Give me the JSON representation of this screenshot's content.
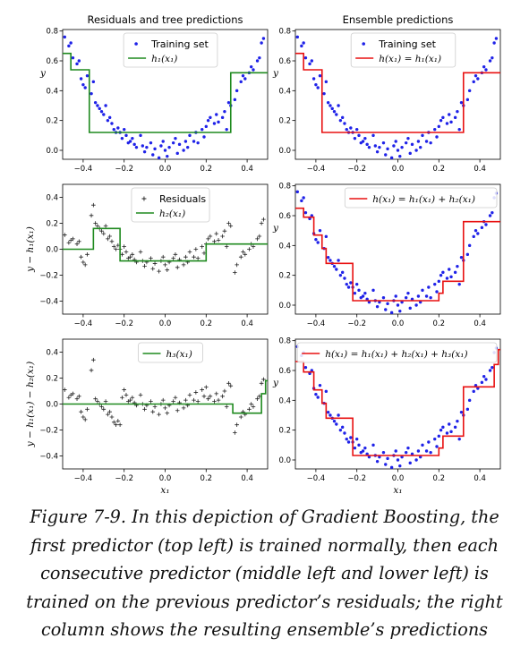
{
  "figure": {
    "colors": {
      "points": "#1f22e8",
      "residuals": "#222222",
      "green": "#1f8a1f",
      "red": "#e81010"
    }
  },
  "chart_data": [
    {
      "id": "p11",
      "type": "scatter",
      "title": "Residuals and tree predictions",
      "xlabel": "",
      "ylabel": "y",
      "xlim": [
        -0.5,
        0.5
      ],
      "ylim": [
        -0.06,
        0.81
      ],
      "xticks": [
        -0.4,
        -0.2,
        0.0,
        0.2,
        0.4
      ],
      "yticks": [
        0.0,
        0.2,
        0.4,
        0.6,
        0.8
      ],
      "points_kind": "dots",
      "line_color": "green",
      "legend": {
        "position": "top-center",
        "entries": [
          {
            "kind": "dots",
            "label": "Training set"
          },
          {
            "kind": "line",
            "label": "h₁(x₁)"
          }
        ]
      },
      "step": {
        "edges": [
          -0.5,
          -0.46,
          -0.37,
          0.32,
          0.5
        ],
        "values": [
          0.65,
          0.54,
          0.12,
          0.52
        ]
      }
    },
    {
      "id": "p12",
      "type": "scatter",
      "title": "Ensemble predictions",
      "xlabel": "",
      "ylabel": "y",
      "xlim": [
        -0.5,
        0.5
      ],
      "ylim": [
        -0.06,
        0.81
      ],
      "xticks": [
        -0.4,
        -0.2,
        0.0,
        0.2,
        0.4
      ],
      "yticks": [
        0.0,
        0.2,
        0.4,
        0.6,
        0.8
      ],
      "points_kind": "dots",
      "line_color": "red",
      "legend": {
        "position": "top-center",
        "entries": [
          {
            "kind": "dots",
            "label": "Training set"
          },
          {
            "kind": "line",
            "label": "h(x₁) = h₁(x₁)"
          }
        ]
      },
      "step": {
        "edges": [
          -0.5,
          -0.46,
          -0.37,
          0.32,
          0.5
        ],
        "values": [
          0.65,
          0.54,
          0.12,
          0.52
        ]
      }
    },
    {
      "id": "p21",
      "type": "scatter",
      "title": "",
      "xlabel": "",
      "ylabel": "y − h₁(x₁)",
      "xlim": [
        -0.5,
        0.5
      ],
      "ylim": [
        -0.5,
        0.5
      ],
      "xticks": [
        -0.4,
        -0.2,
        0.0,
        0.2,
        0.4
      ],
      "yticks": [
        -0.4,
        -0.2,
        0.0,
        0.2,
        0.4
      ],
      "points_kind": "plus",
      "line_color": "green",
      "legend": {
        "position": "top-center",
        "entries": [
          {
            "kind": "plus",
            "label": "Residuals"
          },
          {
            "kind": "line",
            "label": "h₂(x₁)"
          }
        ]
      },
      "step": {
        "edges": [
          -0.5,
          -0.35,
          -0.22,
          0.2,
          0.5
        ],
        "values": [
          0.0,
          0.16,
          -0.09,
          0.04
        ]
      }
    },
    {
      "id": "p22",
      "type": "scatter",
      "title": "",
      "xlabel": "",
      "ylabel": "y",
      "xlim": [
        -0.5,
        0.5
      ],
      "ylim": [
        -0.06,
        0.81
      ],
      "xticks": [
        -0.4,
        -0.2,
        0.0,
        0.2,
        0.4
      ],
      "yticks": [
        0.0,
        0.2,
        0.4,
        0.6,
        0.8
      ],
      "points_kind": "dots",
      "line_color": "red",
      "legend": {
        "position": "top-right",
        "entries": [
          {
            "kind": "line",
            "label": "h(x₁) = h₁(x₁) + h₂(x₁)"
          }
        ]
      },
      "step": {
        "edges": [
          -0.5,
          -0.46,
          -0.41,
          -0.37,
          -0.35,
          -0.22,
          0.2,
          0.22,
          0.32,
          0.5
        ],
        "values": [
          0.65,
          0.59,
          0.47,
          0.38,
          0.28,
          0.03,
          0.08,
          0.16,
          0.56
        ]
      }
    },
    {
      "id": "p31",
      "type": "scatter",
      "title": "",
      "xlabel": "x₁",
      "ylabel": "y − h₁(x₁) − h₂(x₁)",
      "xlim": [
        -0.5,
        0.5
      ],
      "ylim": [
        -0.5,
        0.5
      ],
      "xticks": [
        -0.4,
        -0.2,
        0.0,
        0.2,
        0.4
      ],
      "yticks": [
        -0.4,
        -0.2,
        0.0,
        0.2,
        0.4
      ],
      "points_kind": "plus",
      "line_color": "green",
      "legend": {
        "position": "top-center",
        "entries": [
          {
            "kind": "line",
            "label": "h₃(x₁)"
          }
        ]
      },
      "step": {
        "edges": [
          -0.5,
          0.33,
          0.47,
          0.49,
          0.5
        ],
        "values": [
          0.0,
          -0.07,
          0.08,
          0.18
        ]
      }
    },
    {
      "id": "p32",
      "type": "scatter",
      "title": "",
      "xlabel": "x₁",
      "ylabel": "y",
      "xlim": [
        -0.5,
        0.5
      ],
      "ylim": [
        -0.06,
        0.81
      ],
      "xticks": [
        -0.4,
        -0.2,
        0.0,
        0.2,
        0.4
      ],
      "yticks": [
        0.0,
        0.2,
        0.4,
        0.6,
        0.8
      ],
      "points_kind": "dots",
      "line_color": "red",
      "legend": {
        "position": "top-right",
        "entries": [
          {
            "kind": "line",
            "label": "h(x₁) = h₁(x₁) + h₂(x₁) + h₃(x₁)"
          }
        ]
      },
      "step": {
        "edges": [
          -0.5,
          -0.46,
          -0.41,
          -0.37,
          -0.35,
          -0.22,
          0.2,
          0.22,
          0.32,
          0.47,
          0.49,
          0.5
        ],
        "values": [
          0.66,
          0.59,
          0.47,
          0.38,
          0.28,
          0.03,
          0.08,
          0.16,
          0.49,
          0.64,
          0.74
        ]
      }
    }
  ],
  "training_points": {
    "x": [
      -0.49,
      -0.47,
      -0.46,
      -0.45,
      -0.43,
      -0.42,
      -0.41,
      -0.4,
      -0.39,
      -0.38,
      -0.36,
      -0.35,
      -0.34,
      -0.33,
      -0.32,
      -0.31,
      -0.3,
      -0.29,
      -0.28,
      -0.27,
      -0.26,
      -0.25,
      -0.24,
      -0.23,
      -0.22,
      -0.21,
      -0.2,
      -0.19,
      -0.18,
      -0.17,
      -0.16,
      -0.15,
      -0.14,
      -0.12,
      -0.11,
      -0.1,
      -0.09,
      -0.07,
      -0.06,
      -0.05,
      -0.03,
      -0.02,
      -0.01,
      0.0,
      0.01,
      0.02,
      0.04,
      0.05,
      0.06,
      0.07,
      0.09,
      0.1,
      0.11,
      0.12,
      0.14,
      0.15,
      0.16,
      0.18,
      0.19,
      0.2,
      0.21,
      0.22,
      0.24,
      0.25,
      0.26,
      0.28,
      0.29,
      0.3,
      0.31,
      0.32,
      0.34,
      0.35,
      0.37,
      0.38,
      0.39,
      0.41,
      0.42,
      0.43,
      0.45,
      0.46,
      0.47,
      0.48
    ],
    "y": [
      0.76,
      0.7,
      0.72,
      0.62,
      0.58,
      0.6,
      0.48,
      0.44,
      0.42,
      0.5,
      0.38,
      0.46,
      0.32,
      0.3,
      0.28,
      0.26,
      0.24,
      0.3,
      0.2,
      0.22,
      0.18,
      0.14,
      0.12,
      0.15,
      0.12,
      0.08,
      0.14,
      0.1,
      0.05,
      0.06,
      0.08,
      0.04,
      0.02,
      0.1,
      0.03,
      -0.01,
      0.02,
      0.05,
      -0.03,
      0.01,
      -0.05,
      0.03,
      0.06,
      0.0,
      -0.04,
      0.02,
      0.05,
      0.08,
      -0.02,
      0.04,
      0.0,
      0.06,
      0.02,
      0.1,
      0.06,
      0.12,
      0.05,
      0.14,
      0.09,
      0.16,
      0.2,
      0.22,
      0.18,
      0.24,
      0.19,
      0.22,
      0.26,
      0.14,
      0.32,
      0.3,
      0.34,
      0.4,
      0.46,
      0.5,
      0.48,
      0.52,
      0.56,
      0.54,
      0.6,
      0.62,
      0.72,
      0.75
    ]
  },
  "caption": {
    "lines": [
      "Figure 7-9. In this depiction of Gradient Boosting, the",
      "first predictor (top left) is trained normally, then each",
      "consecutive predictor (middle left and lower left) is",
      "trained on the previous predictor’s residuals; the right",
      "column shows the resulting ensemble’s predictions"
    ]
  }
}
